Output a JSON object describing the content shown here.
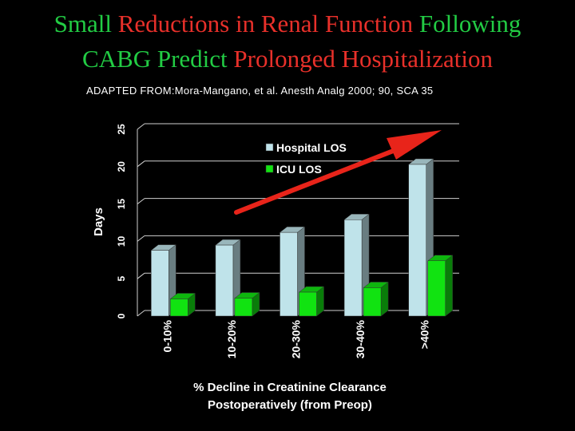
{
  "slide": {
    "title_parts": [
      {
        "text": "Small ",
        "color": "#22cc44"
      },
      {
        "text": "Reductions in Renal Function ",
        "color": "#e8302a"
      },
      {
        "text": "Following",
        "color": "#22cc44"
      },
      {
        "text": "CABG Predict ",
        "color": "#22cc44"
      },
      {
        "text": "Prolonged Hospitalization",
        "color": "#e8302a"
      }
    ],
    "source": "ADAPTED FROM:Mora-Mangano, et al.  Anesth Analg 2000; 90, SCA 35"
  },
  "chart_data": {
    "type": "bar",
    "categories": [
      "0-10%",
      "10-20%",
      "20-30%",
      "30-40%",
      ">40%"
    ],
    "series": [
      {
        "name": "Hospital LOS",
        "color": "#bfe3ea",
        "values": [
          8.8,
          9.5,
          11.2,
          12.9,
          20.3
        ]
      },
      {
        "name": "ICU LOS",
        "color": "#11e311",
        "values": [
          2.3,
          2.4,
          3.2,
          3.8,
          7.4
        ]
      }
    ],
    "ylabel": "Days",
    "xlabel_line1": "% Decline in Creatinine Clearance",
    "xlabel_line2": "Postoperatively (from Preop)",
    "ylim": [
      0,
      25
    ],
    "yticks": [
      0,
      5,
      10,
      15,
      20,
      25
    ],
    "grid": true,
    "legend_position": "top-right",
    "annotation": "red-trend-arrow",
    "arrow_color": "#e8241a"
  }
}
